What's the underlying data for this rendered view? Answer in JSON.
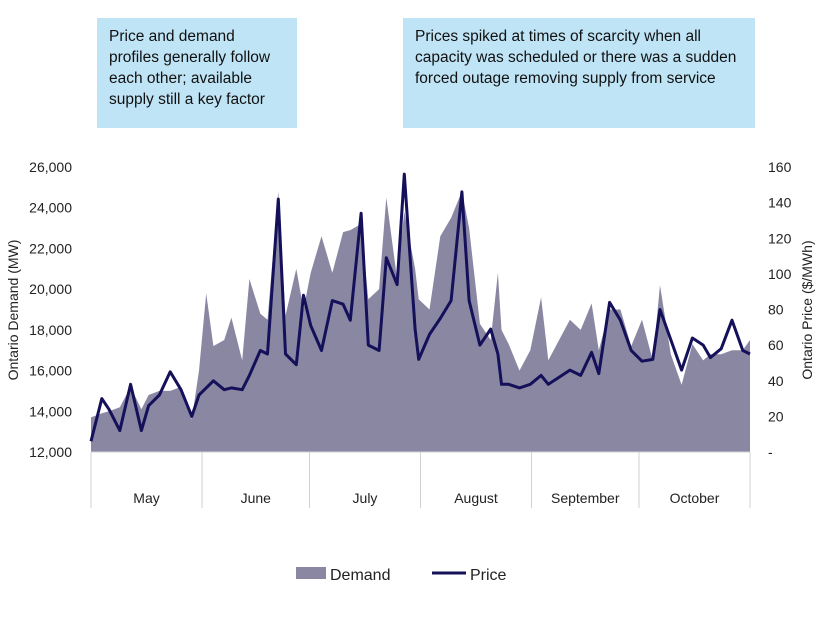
{
  "annotations": [
    "Price and demand profiles generally follow each other; available supply still a key factor",
    "Prices spiked at times of scarcity when all capacity was scheduled or there was a sudden forced outage removing supply from service"
  ],
  "chart_data": {
    "type": "area+line",
    "xlabel": "",
    "ylabel_left": "Ontario Demand (MW)",
    "ylabel_right": "Ontario Price ($/MWh)",
    "ylim_left": [
      12000,
      26000
    ],
    "ylim_right": [
      0,
      160
    ],
    "yticks_left": [
      "12,000",
      "14,000",
      "16,000",
      "18,000",
      "20,000",
      "22,000",
      "24,000",
      "26,000"
    ],
    "yticks_right": [
      "-",
      "20",
      "40",
      "60",
      "80",
      "100",
      "120",
      "140",
      "160"
    ],
    "categories": [
      "May",
      "June",
      "July",
      "August",
      "September",
      "October"
    ],
    "month_days": [
      31,
      30,
      31,
      31,
      30,
      31
    ],
    "grid": false,
    "legend": "bottom",
    "colors": {
      "demand": "#8a87a3",
      "price": "#14105a",
      "annotation_bg": "#bfe4f6"
    },
    "dates": [
      "May 1",
      "May 4",
      "May 6",
      "May 9",
      "May 12",
      "May 15",
      "May 17",
      "May 20",
      "May 23",
      "May 26",
      "May 29",
      "May 31",
      "Jun 2",
      "Jun 4",
      "Jun 7",
      "Jun 9",
      "Jun 12",
      "Jun 14",
      "Jun 17",
      "Jun 19",
      "Jun 22",
      "Jun 24",
      "Jun 27",
      "Jun 29",
      "Jul 1",
      "Jul 4",
      "Jul 7",
      "Jul 10",
      "Jul 12",
      "Jul 15",
      "Jul 17",
      "Jul 20",
      "Jul 22",
      "Jul 25",
      "Jul 27",
      "Jul 30",
      "Jul 31",
      "Aug 3",
      "Aug 6",
      "Aug 9",
      "Aug 12",
      "Aug 14",
      "Aug 17",
      "Aug 20",
      "Aug 22",
      "Aug 23",
      "Aug 25",
      "Aug 28",
      "Aug 31",
      "Sep 3",
      "Sep 5",
      "Sep 8",
      "Sep 11",
      "Sep 14",
      "Sep 17",
      "Sep 19",
      "Sep 22",
      "Sep 25",
      "Sep 28",
      "Oct 1",
      "Oct 4",
      "Oct 6",
      "Oct 9",
      "Oct 12",
      "Oct 15",
      "Oct 18",
      "Oct 20",
      "Oct 23",
      "Oct 26",
      "Oct 29",
      "Oct 31"
    ],
    "series": [
      {
        "name": "Demand",
        "axis": "left",
        "values": [
          13700,
          13900,
          14000,
          14200,
          15200,
          14100,
          14800,
          15000,
          15000,
          15200,
          13600,
          16000,
          19800,
          17200,
          17500,
          18600,
          16500,
          20500,
          18800,
          18500,
          24800,
          18700,
          21000,
          19000,
          20800,
          22600,
          20800,
          22800,
          22900,
          23200,
          19500,
          20000,
          24500,
          20500,
          23800,
          21000,
          19500,
          19000,
          22600,
          23500,
          24800,
          23000,
          18300,
          17500,
          20800,
          18000,
          17300,
          16000,
          17000,
          19600,
          16500,
          17500,
          18500,
          18000,
          19300,
          17000,
          19000,
          19000,
          17200,
          18500,
          16500,
          20200,
          16800,
          15300,
          17300,
          16500,
          16800,
          16800,
          17000,
          17000,
          17500
        ]
      },
      {
        "name": "Price",
        "axis": "right",
        "values": [
          6,
          30,
          24,
          12,
          38,
          12,
          26,
          32,
          45,
          35,
          20,
          32,
          36,
          40,
          35,
          36,
          35,
          43,
          57,
          55,
          142,
          55,
          49,
          88,
          71,
          57,
          85,
          83,
          74,
          134,
          60,
          57,
          109,
          94,
          156,
          69,
          52,
          66,
          75,
          85,
          146,
          85,
          60,
          69,
          55,
          38,
          38,
          36,
          38,
          43,
          38,
          42,
          46,
          43,
          56,
          44,
          84,
          74,
          57,
          51,
          52,
          80,
          63,
          46,
          64,
          60,
          53,
          58,
          74,
          57,
          55
        ]
      }
    ]
  }
}
